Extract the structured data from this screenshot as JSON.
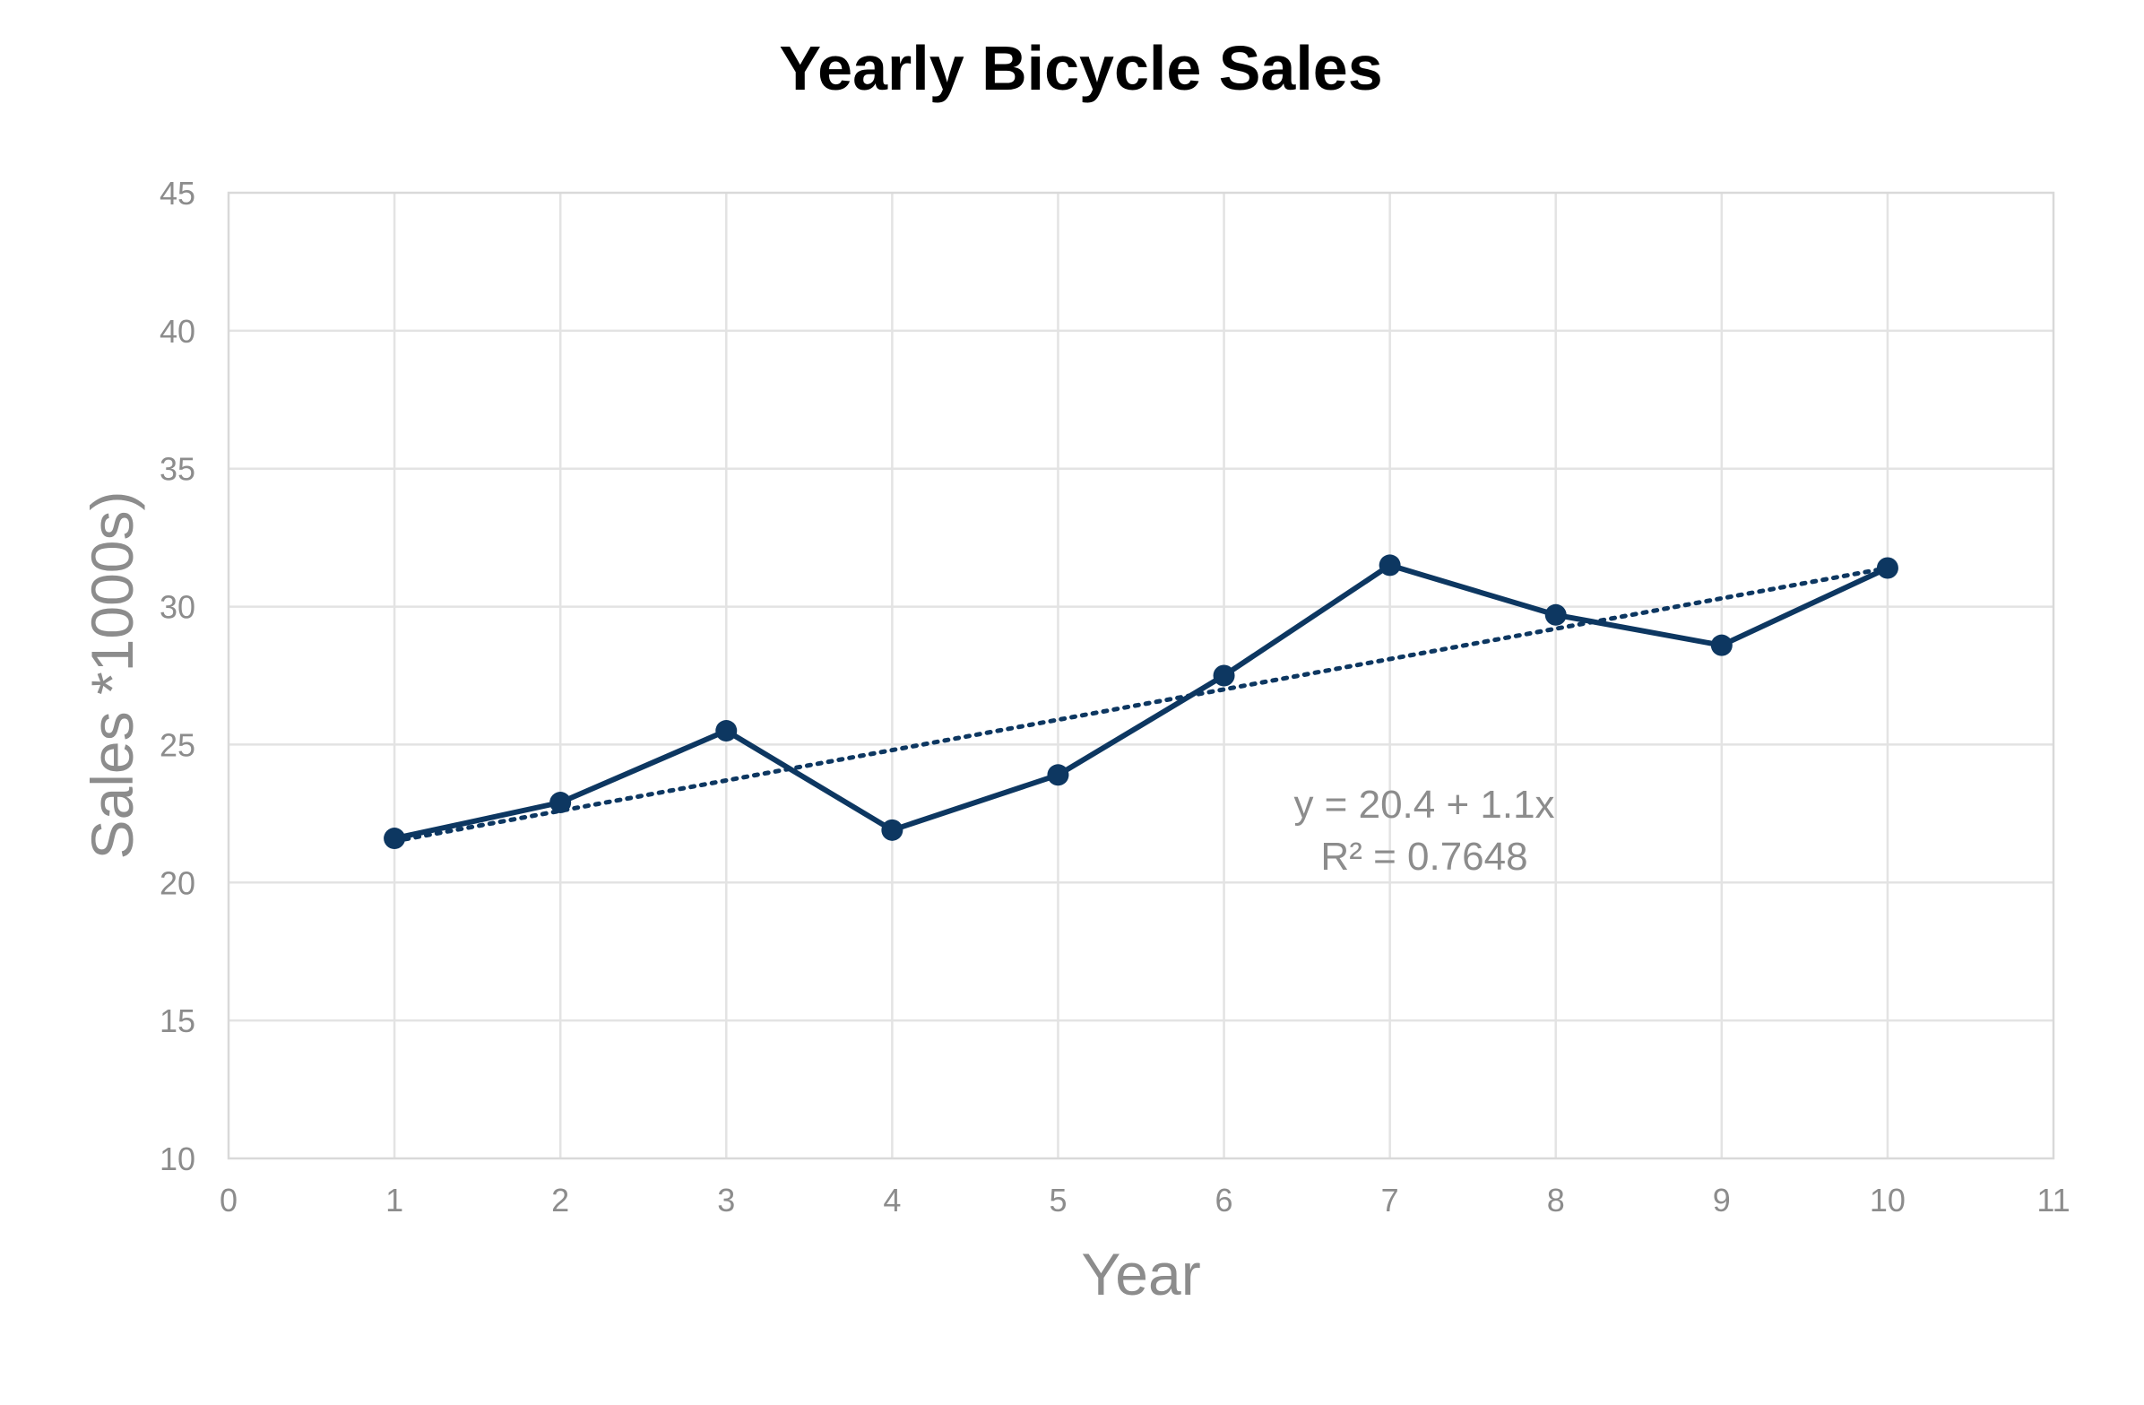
{
  "chart_data": {
    "type": "line",
    "title": "Yearly Bicycle Sales",
    "xlabel": "Year",
    "ylabel": "Sales *1000s)",
    "xlim": [
      0,
      11
    ],
    "ylim": [
      10,
      45
    ],
    "x_ticks": [
      0,
      1,
      2,
      3,
      4,
      5,
      6,
      7,
      8,
      9,
      10,
      11
    ],
    "y_ticks": [
      10,
      15,
      20,
      25,
      30,
      35,
      40,
      45
    ],
    "grid": true,
    "legend": "none",
    "series": [
      {
        "x": [
          1,
          2,
          3,
          4,
          5,
          6,
          7,
          8,
          9,
          10
        ],
        "values": [
          21.6,
          22.9,
          25.5,
          21.9,
          23.9,
          27.5,
          31.5,
          29.7,
          28.6,
          31.4
        ],
        "color": "#0d3761",
        "markers": true
      }
    ],
    "trendline": {
      "type": "linear",
      "intercept": 20.4,
      "slope": 1.1,
      "x_range": [
        1,
        10
      ],
      "style": "dotted",
      "color": "#0d3761",
      "equation_label": "y = 20.4 + 1.1x",
      "r2_label": "R² = 0.7648"
    }
  }
}
